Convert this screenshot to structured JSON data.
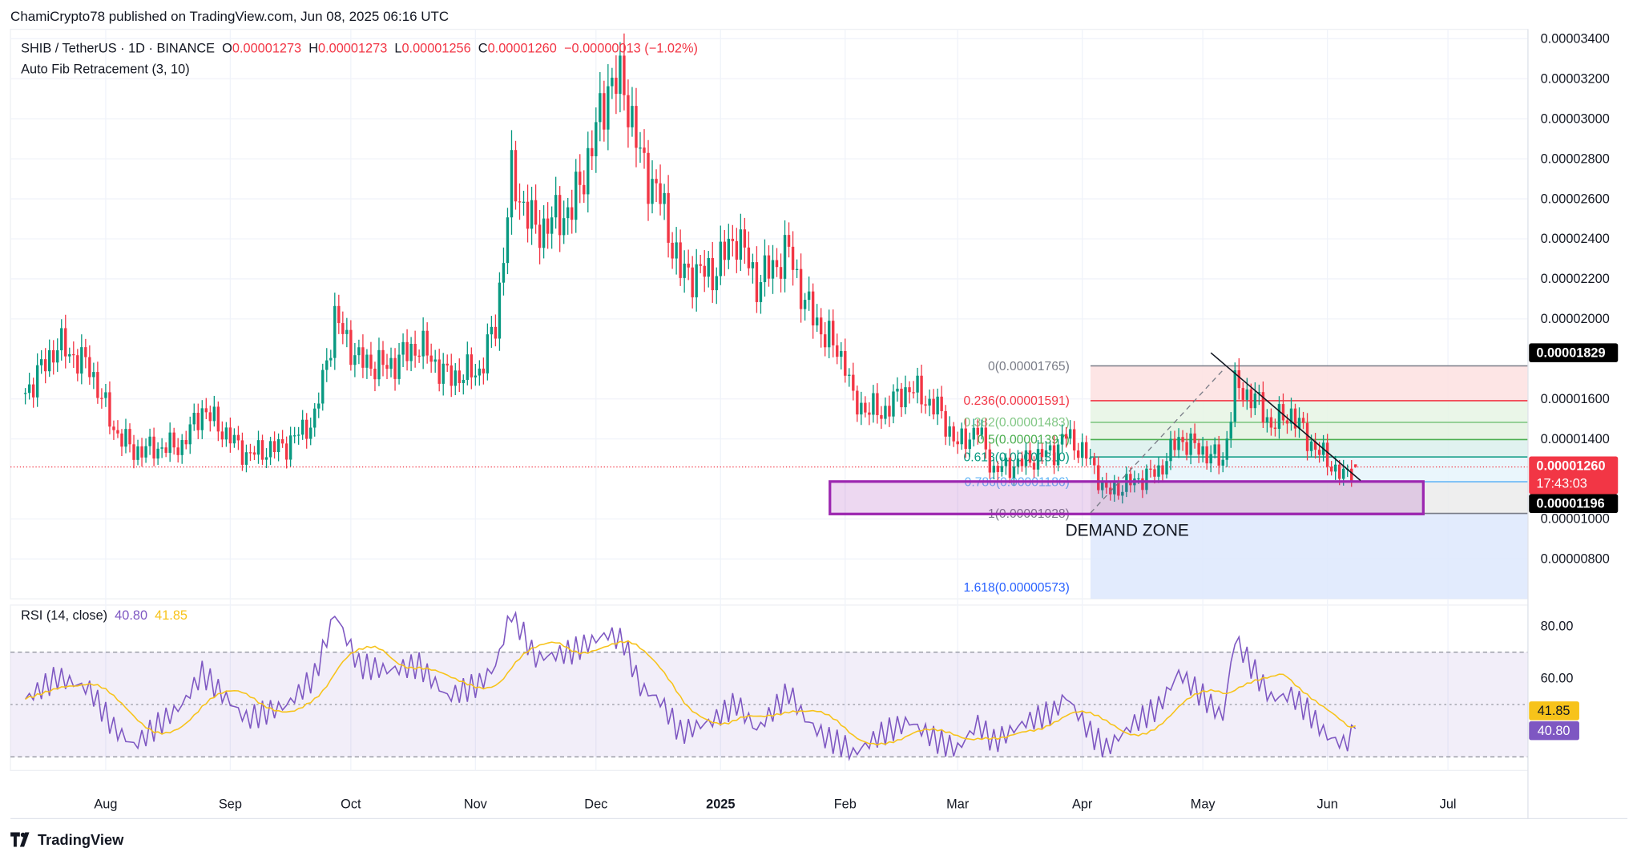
{
  "header": {
    "publisher_line": "ChamiCrypto78 published on TradingView.com, Jun 08, 2025 06:16 UTC"
  },
  "legend": {
    "symbol": "SHIB / TetherUS · 1D · BINANCE",
    "o_label": "O",
    "o": "0.00001273",
    "h_label": "H",
    "h": "0.00001273",
    "l_label": "L",
    "l": "0.00001256",
    "c_label": "C",
    "c": "0.00001260",
    "change": "−0.00000013 (−1.02%)"
  },
  "indicator": {
    "name": "Auto Fib Retracement (3, 10)"
  },
  "rsi": {
    "label": "RSI (14, close)",
    "value": "40.80",
    "ma_value": "41.85",
    "axis_ticks": [
      "80.00",
      "60.00"
    ],
    "line_color": "#7e57c2",
    "ma_color": "#f7c31a"
  },
  "footer": {
    "brand": "TradingView"
  },
  "colors": {
    "up": "#089981",
    "down": "#f23645",
    "demand_zone": "#9c27b0"
  },
  "chart_data": {
    "type": "candlestick",
    "title": "SHIB / TetherUS · 1D · BINANCE",
    "ylim": [
      6e-06,
      3.5e-05
    ],
    "y_ticks": [
      "0.00003400",
      "0.00003200",
      "0.00003000",
      "0.00002800",
      "0.00002600",
      "0.00002400",
      "0.00002200",
      "0.00002000",
      "0.00001600",
      "0.00001400",
      "0.00001000",
      "0.00000800"
    ],
    "x_ticks": [
      "Aug",
      "Sep",
      "Oct",
      "Nov",
      "Dec",
      "2025",
      "Feb",
      "Mar",
      "Apr",
      "May",
      "Jun",
      "Jul"
    ],
    "close_anchors": [
      [
        "2024-07-12",
        1.63
      ],
      [
        "2024-07-20",
        1.87
      ],
      [
        "2024-07-28",
        1.76
      ],
      [
        "2024-08-03",
        1.45
      ],
      [
        "2024-08-08",
        1.34
      ],
      [
        "2024-08-20",
        1.37
      ],
      [
        "2024-08-25",
        1.55
      ],
      [
        "2024-09-05",
        1.32
      ],
      [
        "2024-09-15",
        1.37
      ],
      [
        "2024-09-22",
        1.5
      ],
      [
        "2024-09-27",
        2.0
      ],
      [
        "2024-10-03",
        1.79
      ],
      [
        "2024-10-10",
        1.76
      ],
      [
        "2024-10-18",
        1.87
      ],
      [
        "2024-10-25",
        1.71
      ],
      [
        "2024-11-02",
        1.74
      ],
      [
        "2024-11-06",
        1.97
      ],
      [
        "2024-11-10",
        2.7
      ],
      [
        "2024-11-16",
        2.44
      ],
      [
        "2024-11-25",
        2.55
      ],
      [
        "2024-11-30",
        2.86
      ],
      [
        "2024-12-04",
        3.17
      ],
      [
        "2024-12-08",
        3.17
      ],
      [
        "2024-12-12",
        2.8
      ],
      [
        "2024-12-17",
        2.6
      ],
      [
        "2024-12-22",
        2.23
      ],
      [
        "2024-12-30",
        2.23
      ],
      [
        "2025-01-05",
        2.42
      ],
      [
        "2025-01-10",
        2.18
      ],
      [
        "2025-01-18",
        2.34
      ],
      [
        "2025-01-22",
        2.08
      ],
      [
        "2025-01-27",
        1.92
      ],
      [
        "2025-02-01",
        1.79
      ],
      [
        "2025-02-03",
        1.58
      ],
      [
        "2025-02-10",
        1.53
      ],
      [
        "2025-02-17",
        1.66
      ],
      [
        "2025-02-24",
        1.55
      ],
      [
        "2025-03-01",
        1.37
      ],
      [
        "2025-03-06",
        1.45
      ],
      [
        "2025-03-10",
        1.24
      ],
      [
        "2025-03-18",
        1.29
      ],
      [
        "2025-03-25",
        1.34
      ],
      [
        "2025-03-28",
        1.42
      ],
      [
        "2025-04-03",
        1.29
      ],
      [
        "2025-04-07",
        1.13
      ],
      [
        "2025-04-14",
        1.19
      ],
      [
        "2025-04-20",
        1.24
      ],
      [
        "2025-04-25",
        1.4
      ],
      [
        "2025-05-01",
        1.34
      ],
      [
        "2025-05-06",
        1.29
      ],
      [
        "2025-05-09",
        1.66
      ],
      [
        "2025-05-14",
        1.6
      ],
      [
        "2025-05-18",
        1.47
      ],
      [
        "2025-05-23",
        1.53
      ],
      [
        "2025-05-27",
        1.4
      ],
      [
        "2025-06-01",
        1.29
      ],
      [
        "2025-06-05",
        1.21
      ],
      [
        "2025-06-08",
        1.26
      ]
    ],
    "price_unit": "1e-5",
    "rsi_anchors": [
      52,
      60,
      55,
      40,
      33,
      48,
      60,
      42,
      47,
      58,
      82,
      62,
      60,
      62,
      50,
      55,
      62,
      83,
      65,
      68,
      72,
      75,
      72,
      55,
      50,
      38,
      43,
      50,
      40,
      55,
      45,
      38,
      35,
      32,
      40,
      45,
      38,
      35,
      45,
      38,
      46,
      50,
      56,
      42,
      36,
      46,
      52,
      65,
      56,
      48,
      78,
      65,
      55,
      56,
      50,
      40,
      37,
      40.8
    ],
    "fib": {
      "levels": [
        {
          "ratio": "0",
          "price": "0.00001765",
          "label": "0(0.00001765)",
          "color": "#787b86",
          "fill": "#fde0e0"
        },
        {
          "ratio": "0.236",
          "price": "0.00001591",
          "label": "0.236(0.00001591)",
          "color": "#f23645",
          "fill": "#e6f4e4"
        },
        {
          "ratio": "0.382",
          "price": "0.00001483",
          "label": "0.382(0.00001483)",
          "color": "#81c784",
          "fill": "#e3f2e1"
        },
        {
          "ratio": "0.5",
          "price": "0.00001397",
          "label": "0.5(0.00001397)",
          "color": "#4caf50",
          "fill": "#dbf0ec"
        },
        {
          "ratio": "0.618",
          "price": "0.00001310",
          "label": "0.618(0.00001310)",
          "color": "#089981",
          "fill": "#e6f4fb"
        },
        {
          "ratio": "0.786",
          "price": "0.00001186",
          "label": "0.786(0.00001186)",
          "color": "#64b5f6",
          "fill": "#ebebeb"
        },
        {
          "ratio": "1",
          "price": "0.00001028",
          "label": "1(0.00001028)",
          "color": "#787b86",
          "fill": "#dde8fd"
        },
        {
          "ratio": "1.618",
          "price": "0.00000573",
          "label": "1.618(0.00000573)",
          "color": "#2962ff",
          "fill": ""
        }
      ]
    },
    "annotations": {
      "demand_zone": "DEMAND ZONE",
      "demand_zone_range": [
        "0.00001000",
        "0.00001196"
      ]
    },
    "price_badges": {
      "high_marker": "0.00001829",
      "last_price": "0.00001260",
      "countdown": "17:43:03",
      "zone_top": "0.00001196"
    }
  }
}
